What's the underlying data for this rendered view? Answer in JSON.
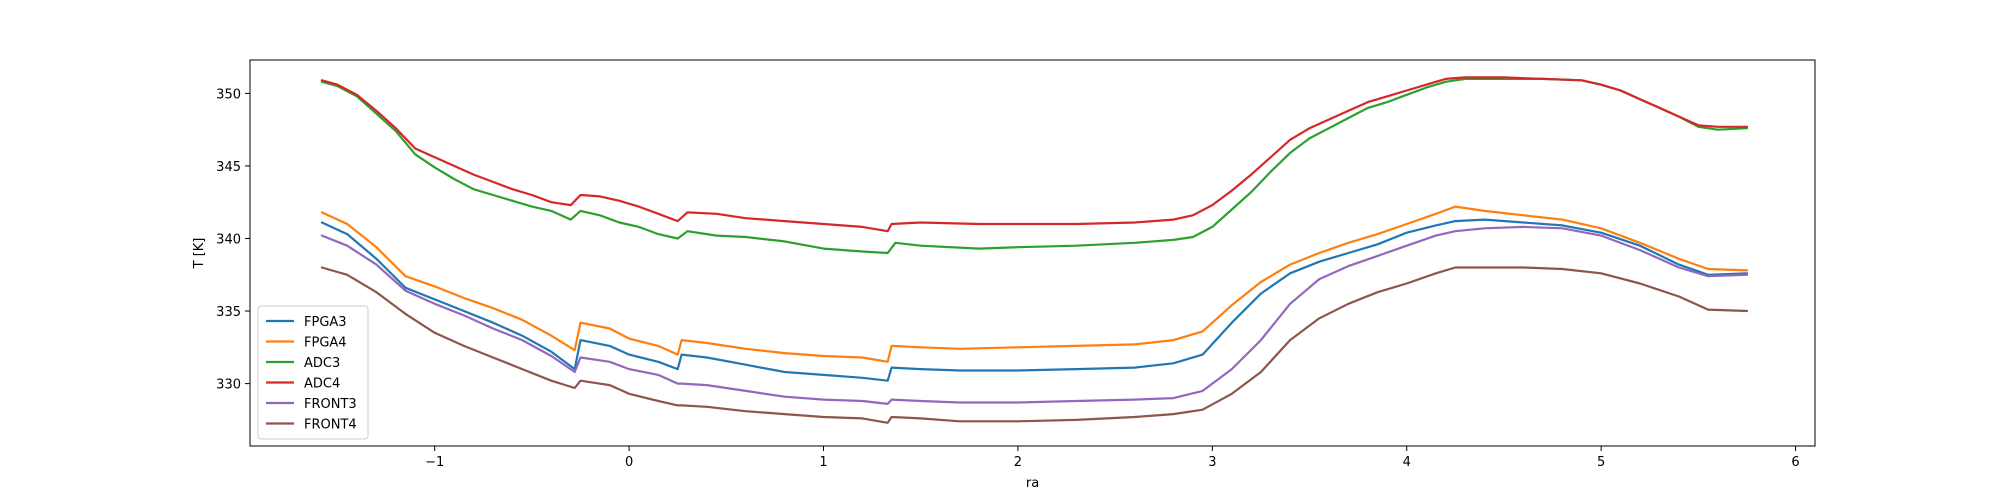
{
  "chart_data": {
    "type": "line",
    "title": "",
    "xlabel": "ra",
    "ylabel": "T [K]",
    "xlim": [
      -1.95,
      6.1
    ],
    "ylim": [
      325.7,
      352.3
    ],
    "xticks": [
      -1,
      0,
      1,
      2,
      3,
      4,
      5,
      6
    ],
    "yticks": [
      330,
      335,
      340,
      345,
      350
    ],
    "xtick_labels": [
      "−1",
      "0",
      "1",
      "2",
      "3",
      "4",
      "5",
      "6"
    ],
    "ytick_labels": [
      "330",
      "335",
      "340",
      "345",
      "350"
    ],
    "grid": false,
    "legend_position": "lower-left",
    "series": [
      {
        "name": "FPGA3",
        "color": "#1f77b4",
        "x": [
          -1.58,
          -1.45,
          -1.3,
          -1.15,
          -1.0,
          -0.85,
          -0.7,
          -0.55,
          -0.4,
          -0.28,
          -0.25,
          -0.1,
          0.0,
          0.15,
          0.25,
          0.27,
          0.4,
          0.6,
          0.8,
          1.0,
          1.2,
          1.33,
          1.35,
          1.5,
          1.7,
          2.0,
          2.3,
          2.6,
          2.8,
          2.95,
          3.1,
          3.25,
          3.4,
          3.55,
          3.7,
          3.85,
          4.0,
          4.15,
          4.25,
          4.4,
          4.6,
          4.8,
          5.0,
          5.2,
          5.4,
          5.55,
          5.75
        ],
        "y": [
          341.1,
          340.3,
          338.6,
          336.6,
          335.8,
          335.0,
          334.2,
          333.3,
          332.2,
          331.0,
          333.0,
          332.6,
          332.0,
          331.5,
          331.0,
          332.0,
          331.8,
          331.3,
          330.8,
          330.6,
          330.4,
          330.2,
          331.1,
          331.0,
          330.9,
          330.9,
          331.0,
          331.1,
          331.4,
          332.0,
          334.2,
          336.2,
          337.6,
          338.4,
          339.0,
          339.6,
          340.4,
          340.9,
          341.2,
          341.3,
          341.1,
          340.9,
          340.4,
          339.5,
          338.2,
          337.5,
          337.6
        ]
      },
      {
        "name": "FPGA4",
        "color": "#ff7f0e",
        "x": [
          -1.58,
          -1.45,
          -1.3,
          -1.15,
          -1.0,
          -0.85,
          -0.7,
          -0.55,
          -0.4,
          -0.28,
          -0.25,
          -0.1,
          0.0,
          0.15,
          0.25,
          0.27,
          0.4,
          0.6,
          0.8,
          1.0,
          1.2,
          1.33,
          1.35,
          1.5,
          1.7,
          2.0,
          2.3,
          2.6,
          2.8,
          2.95,
          3.1,
          3.25,
          3.4,
          3.55,
          3.7,
          3.85,
          4.0,
          4.15,
          4.25,
          4.4,
          4.6,
          4.8,
          5.0,
          5.2,
          5.4,
          5.55,
          5.75
        ],
        "y": [
          341.8,
          341.0,
          339.4,
          337.4,
          336.7,
          335.9,
          335.2,
          334.4,
          333.3,
          332.3,
          334.2,
          333.8,
          333.1,
          332.6,
          332.0,
          333.0,
          332.8,
          332.4,
          332.1,
          331.9,
          331.8,
          331.5,
          332.6,
          332.5,
          332.4,
          332.5,
          332.6,
          332.7,
          333.0,
          333.6,
          335.4,
          337.0,
          338.2,
          339.0,
          339.7,
          340.3,
          341.0,
          341.7,
          342.2,
          341.9,
          341.6,
          341.3,
          340.7,
          339.7,
          338.6,
          337.9,
          337.8
        ]
      },
      {
        "name": "ADC3",
        "color": "#2ca02c",
        "x": [
          -1.58,
          -1.5,
          -1.4,
          -1.3,
          -1.2,
          -1.1,
          -1.0,
          -0.9,
          -0.8,
          -0.7,
          -0.6,
          -0.5,
          -0.4,
          -0.3,
          -0.25,
          -0.15,
          -0.05,
          0.05,
          0.15,
          0.25,
          0.3,
          0.45,
          0.6,
          0.8,
          1.0,
          1.2,
          1.33,
          1.37,
          1.5,
          1.8,
          2.0,
          2.3,
          2.6,
          2.8,
          2.9,
          3.0,
          3.1,
          3.2,
          3.3,
          3.4,
          3.5,
          3.6,
          3.7,
          3.8,
          3.9,
          4.0,
          4.1,
          4.2,
          4.3,
          4.5,
          4.7,
          4.9,
          5.0,
          5.1,
          5.2,
          5.3,
          5.4,
          5.5,
          5.6,
          5.75
        ],
        "y": [
          350.8,
          350.5,
          349.8,
          348.6,
          347.4,
          345.8,
          344.9,
          344.1,
          343.4,
          343.0,
          342.6,
          342.2,
          341.9,
          341.3,
          341.9,
          341.6,
          341.1,
          340.8,
          340.3,
          340.0,
          340.5,
          340.2,
          340.1,
          339.8,
          339.3,
          339.1,
          339.0,
          339.7,
          339.5,
          339.3,
          339.4,
          339.5,
          339.7,
          339.9,
          340.1,
          340.8,
          342.0,
          343.2,
          344.6,
          345.9,
          346.9,
          347.6,
          348.3,
          349.0,
          349.4,
          349.9,
          350.4,
          350.8,
          351.0,
          351.0,
          351.0,
          350.9,
          350.6,
          350.2,
          349.6,
          349.0,
          348.4,
          347.7,
          347.5,
          347.6
        ]
      },
      {
        "name": "ADC4",
        "color": "#d62728",
        "x": [
          -1.58,
          -1.5,
          -1.4,
          -1.3,
          -1.2,
          -1.1,
          -1.0,
          -0.9,
          -0.8,
          -0.7,
          -0.6,
          -0.5,
          -0.4,
          -0.3,
          -0.25,
          -0.15,
          -0.05,
          0.05,
          0.15,
          0.25,
          0.3,
          0.45,
          0.6,
          0.8,
          1.0,
          1.2,
          1.33,
          1.35,
          1.5,
          1.8,
          2.0,
          2.3,
          2.6,
          2.8,
          2.9,
          3.0,
          3.1,
          3.2,
          3.3,
          3.4,
          3.5,
          3.6,
          3.7,
          3.8,
          3.9,
          4.0,
          4.1,
          4.2,
          4.3,
          4.5,
          4.7,
          4.9,
          5.0,
          5.1,
          5.2,
          5.3,
          5.4,
          5.5,
          5.6,
          5.75
        ],
        "y": [
          350.9,
          350.6,
          349.9,
          348.8,
          347.6,
          346.2,
          345.6,
          345.0,
          344.4,
          343.9,
          343.4,
          343.0,
          342.5,
          342.3,
          343.0,
          342.9,
          342.6,
          342.2,
          341.7,
          341.2,
          341.8,
          341.7,
          341.4,
          341.2,
          341.0,
          340.8,
          340.5,
          341.0,
          341.1,
          341.0,
          341.0,
          341.0,
          341.1,
          341.3,
          341.6,
          342.3,
          343.3,
          344.4,
          345.6,
          346.8,
          347.6,
          348.2,
          348.8,
          349.4,
          349.8,
          350.2,
          350.6,
          351.0,
          351.1,
          351.1,
          351.0,
          350.9,
          350.6,
          350.2,
          349.6,
          349.0,
          348.4,
          347.8,
          347.7,
          347.7
        ]
      },
      {
        "name": "FRONT3",
        "color": "#9467bd",
        "x": [
          -1.58,
          -1.45,
          -1.3,
          -1.15,
          -1.0,
          -0.85,
          -0.7,
          -0.55,
          -0.4,
          -0.28,
          -0.25,
          -0.1,
          0.0,
          0.15,
          0.25,
          0.27,
          0.4,
          0.6,
          0.8,
          1.0,
          1.2,
          1.33,
          1.35,
          1.5,
          1.7,
          2.0,
          2.3,
          2.6,
          2.8,
          2.95,
          3.1,
          3.25,
          3.4,
          3.55,
          3.7,
          3.85,
          4.0,
          4.15,
          4.25,
          4.4,
          4.6,
          4.8,
          5.0,
          5.2,
          5.4,
          5.55,
          5.75
        ],
        "y": [
          340.2,
          339.5,
          338.2,
          336.4,
          335.5,
          334.7,
          333.8,
          333.0,
          331.9,
          330.8,
          331.8,
          331.5,
          331.0,
          330.6,
          330.0,
          330.0,
          329.9,
          329.5,
          329.1,
          328.9,
          328.8,
          328.6,
          328.9,
          328.8,
          328.7,
          328.7,
          328.8,
          328.9,
          329.0,
          329.5,
          331.0,
          333.0,
          335.5,
          337.2,
          338.1,
          338.8,
          339.5,
          340.2,
          340.5,
          340.7,
          340.8,
          340.7,
          340.2,
          339.2,
          338.0,
          337.4,
          337.5
        ]
      },
      {
        "name": "FRONT4",
        "color": "#8c564b",
        "x": [
          -1.58,
          -1.45,
          -1.3,
          -1.15,
          -1.0,
          -0.85,
          -0.7,
          -0.55,
          -0.4,
          -0.28,
          -0.25,
          -0.1,
          0.0,
          0.15,
          0.25,
          0.27,
          0.4,
          0.6,
          0.8,
          1.0,
          1.2,
          1.33,
          1.35,
          1.5,
          1.7,
          2.0,
          2.3,
          2.6,
          2.8,
          2.95,
          3.1,
          3.25,
          3.4,
          3.55,
          3.7,
          3.85,
          4.0,
          4.15,
          4.25,
          4.4,
          4.6,
          4.8,
          5.0,
          5.2,
          5.4,
          5.55,
          5.75
        ],
        "y": [
          338.0,
          337.5,
          336.3,
          334.8,
          333.5,
          332.6,
          331.8,
          331.0,
          330.2,
          329.7,
          330.2,
          329.9,
          329.3,
          328.8,
          328.5,
          328.5,
          328.4,
          328.1,
          327.9,
          327.7,
          327.6,
          327.3,
          327.7,
          327.6,
          327.4,
          327.4,
          327.5,
          327.7,
          327.9,
          328.2,
          329.3,
          330.8,
          333.0,
          334.5,
          335.5,
          336.3,
          336.9,
          337.6,
          338.0,
          338.0,
          338.0,
          337.9,
          337.6,
          336.9,
          336.0,
          335.1,
          335.0
        ]
      }
    ]
  }
}
